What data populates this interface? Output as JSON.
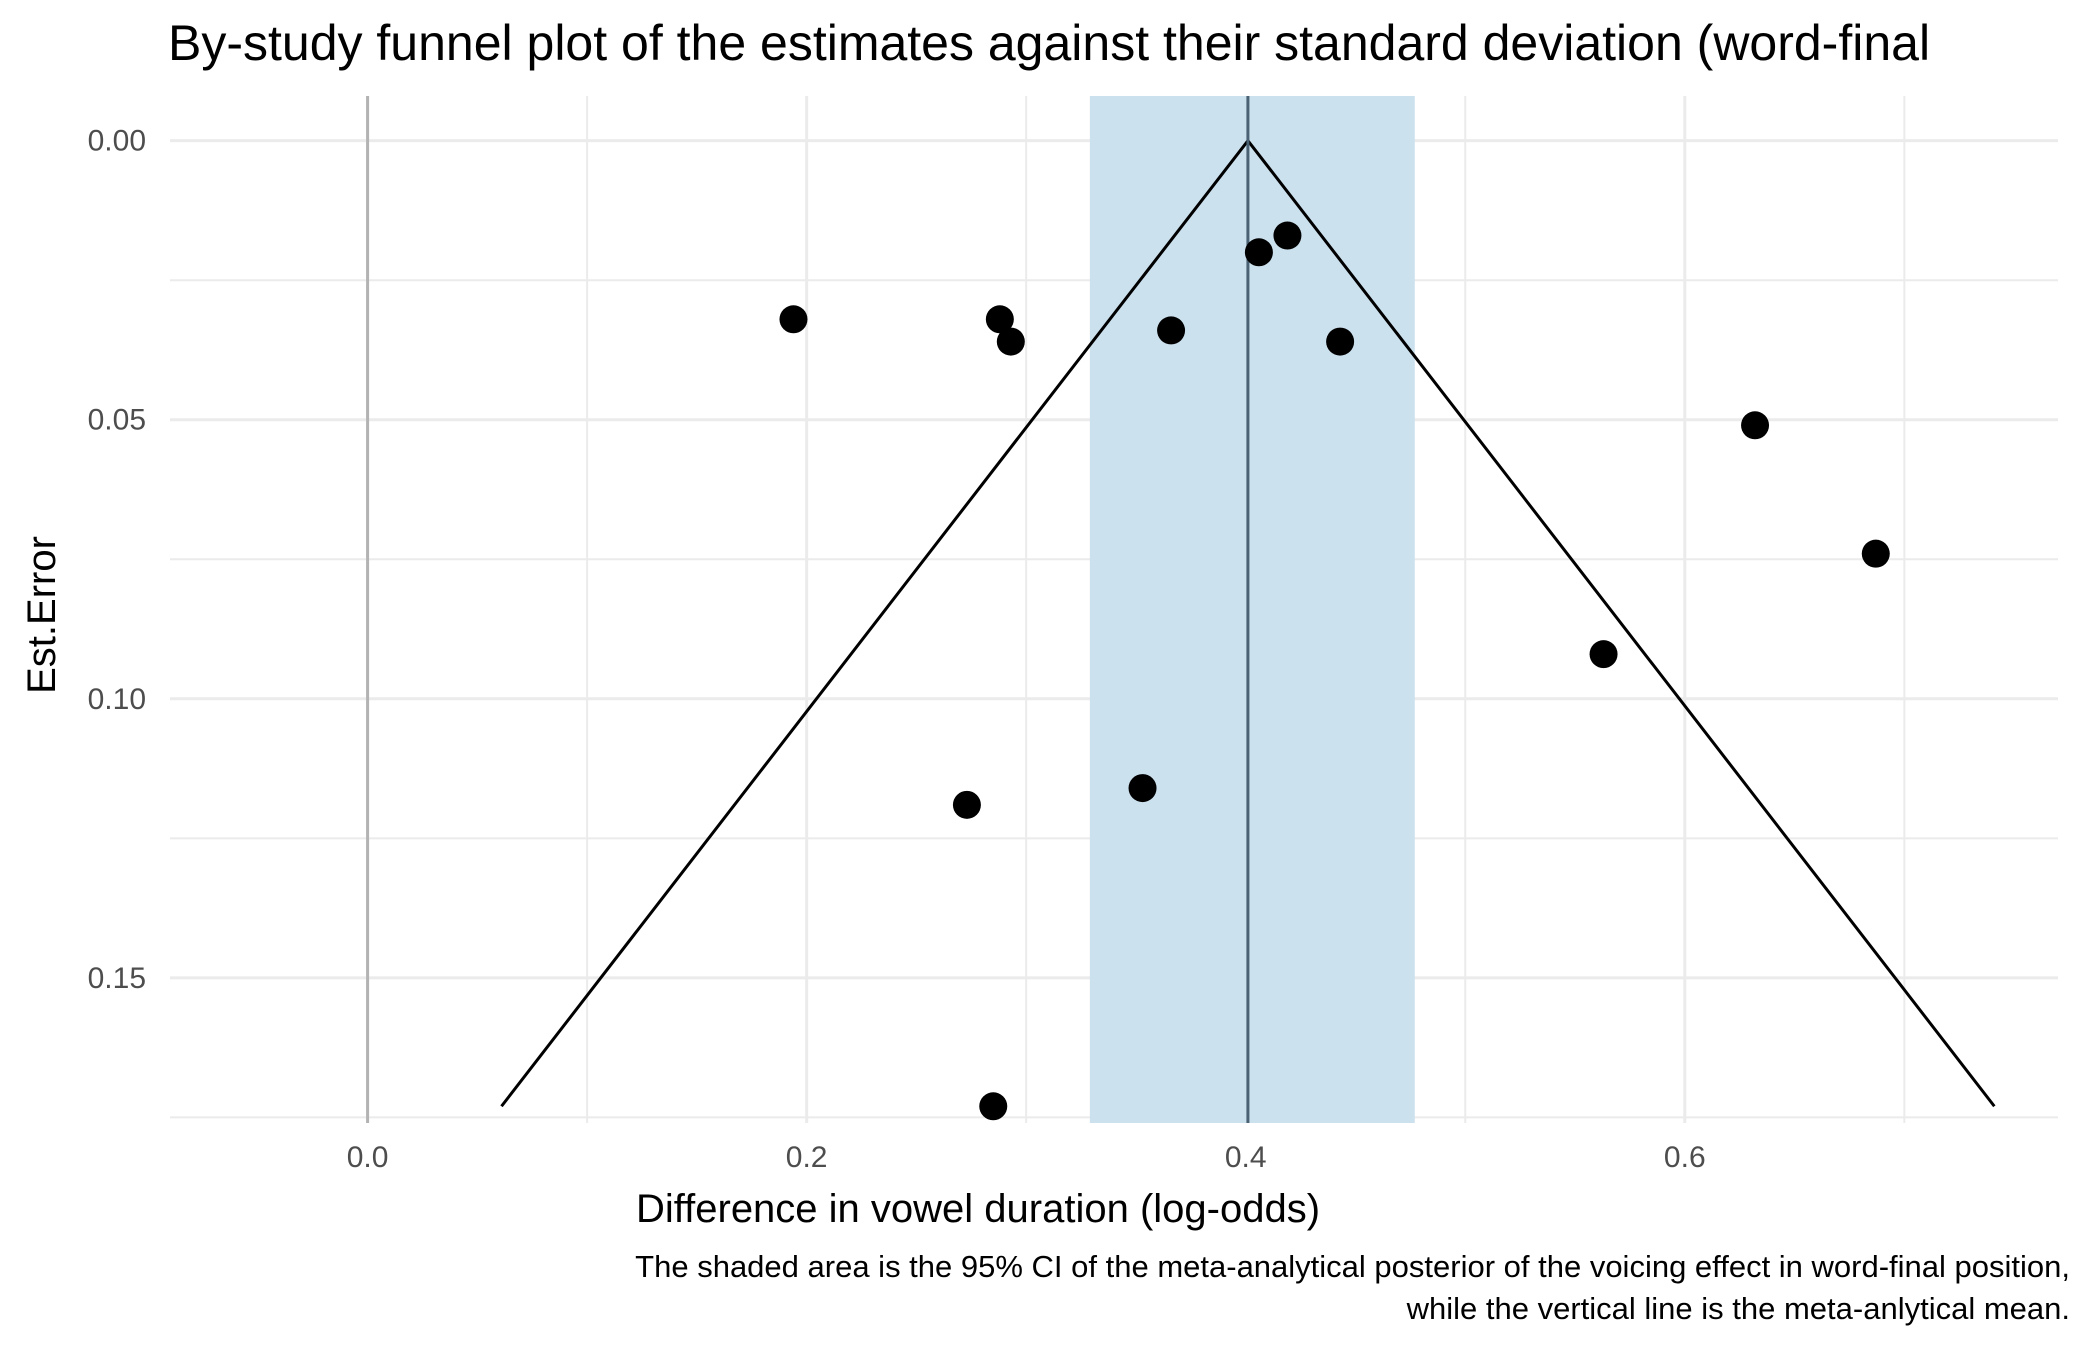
{
  "chart_data": {
    "type": "scatter",
    "title": "By-study funnel plot of the estimates against their standard deviation (word-final",
    "xlabel": "Difference in vowel duration (log-odds)",
    "ylabel": "Est.Error",
    "xlim": [
      -0.09,
      0.77
    ],
    "ylim": [
      0.176,
      -0.008
    ],
    "y_reversed": true,
    "x_ticks": [
      0.0,
      0.2,
      0.4,
      0.6
    ],
    "x_tick_labels": [
      "0.0",
      "0.2",
      "0.4",
      "0.6"
    ],
    "y_ticks": [
      0.0,
      0.05,
      0.1,
      0.15
    ],
    "y_tick_labels": [
      "0.00",
      "0.05",
      "0.10",
      "0.15"
    ],
    "grid": true,
    "points": [
      {
        "x": 0.194,
        "y": 0.032
      },
      {
        "x": 0.288,
        "y": 0.032
      },
      {
        "x": 0.293,
        "y": 0.036
      },
      {
        "x": 0.366,
        "y": 0.034
      },
      {
        "x": 0.406,
        "y": 0.02
      },
      {
        "x": 0.419,
        "y": 0.017
      },
      {
        "x": 0.443,
        "y": 0.036
      },
      {
        "x": 0.632,
        "y": 0.051
      },
      {
        "x": 0.687,
        "y": 0.074
      },
      {
        "x": 0.563,
        "y": 0.092
      },
      {
        "x": 0.273,
        "y": 0.119
      },
      {
        "x": 0.353,
        "y": 0.116
      },
      {
        "x": 0.285,
        "y": 0.173
      }
    ],
    "meta_mean": 0.401,
    "ci_95": [
      0.329,
      0.477
    ],
    "funnel": [
      {
        "x": 0.061,
        "y": 0.173
      },
      {
        "x": 0.401,
        "y": 0.0
      },
      {
        "x": 0.741,
        "y": 0.173
      }
    ],
    "reference_line_x": 0.0,
    "colors": {
      "points": "#000000",
      "ci_band": "#cce1ee",
      "mean_line": "#4a6274",
      "funnel": "#000000",
      "zero_line": "#b3b3b3",
      "grid": "#ebebeb"
    }
  },
  "caption": {
    "line1": "The shaded area is the 95% CI of the meta-analytical posterior of the voicing effect in word-final position,",
    "line2": "while the vertical line is the meta-anlytical mean."
  }
}
